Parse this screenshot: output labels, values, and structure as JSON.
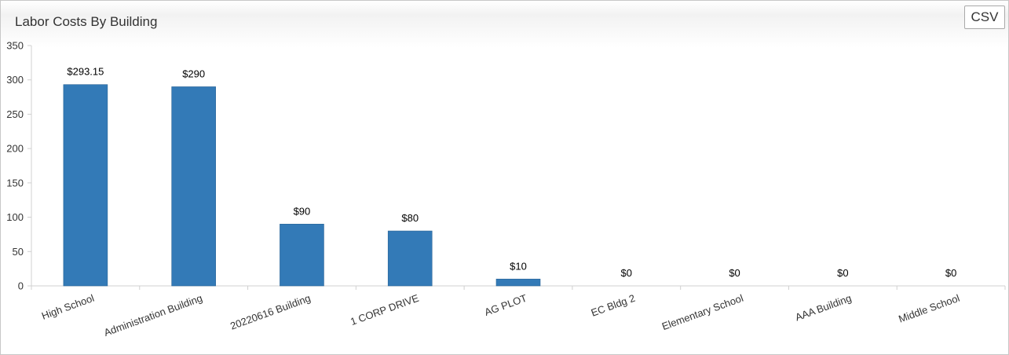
{
  "title": "Labor Costs By Building",
  "csv_label": "CSV",
  "chart_data": {
    "type": "bar",
    "title": "Labor Costs By Building",
    "xlabel": "",
    "ylabel": "",
    "ylim": [
      0,
      350
    ],
    "yticks": [
      0,
      50,
      100,
      150,
      200,
      250,
      300,
      350
    ],
    "categories": [
      "High School",
      "Administration Building",
      "20220616 Building",
      "1 CORP DRIVE",
      "AG PLOT",
      "EC Bldg 2",
      "Elementary School",
      "AAA Building",
      "Middle School"
    ],
    "values": [
      293.15,
      290,
      90,
      80,
      10,
      0,
      0,
      0,
      0
    ],
    "data_labels": [
      "$293.15",
      "$290",
      "$90",
      "$80",
      "$10",
      "$0",
      "$0",
      "$0",
      "$0"
    ],
    "bar_color": "#337ab7",
    "grid": false,
    "x_label_rotation": -20
  }
}
